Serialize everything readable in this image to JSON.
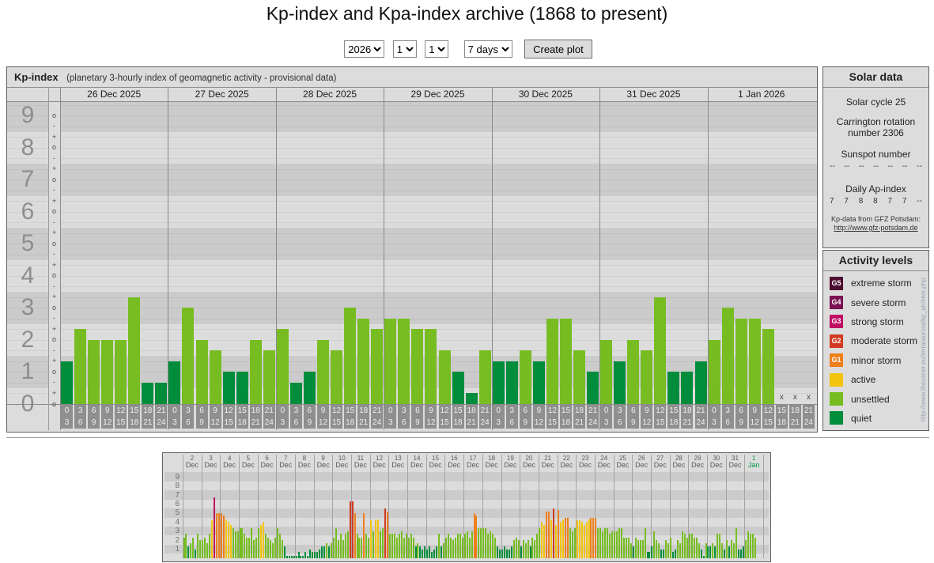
{
  "page": {
    "title": "Kp-index and Kpa-index archive (1868 to present)"
  },
  "controls": {
    "year": "2026",
    "month": "1",
    "day": "1",
    "range": "7 days",
    "submit": "Create plot"
  },
  "kp_panel": {
    "title": "Kp-index",
    "subtitle": "(planetary 3-hourly index of geomagnetic activity - provisional data)",
    "missing_marker": "x"
  },
  "solar_data": {
    "title": "Solar data",
    "cycle": "Solar cycle 25",
    "carrington": "Carrington rotation number 2306",
    "sunspot_label": "Sunspot number",
    "sunspot_values": [
      "--",
      "--",
      "--",
      "--",
      "--",
      "--",
      "--"
    ],
    "ap_label": "Daily Ap-index",
    "ap_values": [
      "7",
      "7",
      "8",
      "8",
      "7",
      "7",
      "--"
    ],
    "source_line1": "Kp-data from GFZ Potsdam:",
    "source_line2": "http://www.gfz-potsdam.de"
  },
  "activity_levels": {
    "title": "Activity levels",
    "items": [
      {
        "code": "G5",
        "label": "extreme storm",
        "color": "#4c0d30"
      },
      {
        "code": "G4",
        "label": "severe storm",
        "color": "#7a1252"
      },
      {
        "code": "G3",
        "label": "strong storm",
        "color": "#c00e63"
      },
      {
        "code": "G2",
        "label": "moderate storm",
        "color": "#d13a21"
      },
      {
        "code": "G1",
        "label": "minor storm",
        "color": "#ee7f1b"
      },
      {
        "code": "",
        "label": "active",
        "color": "#f2c40e"
      },
      {
        "code": "",
        "label": "unsettled",
        "color": "#77bd22"
      },
      {
        "code": "",
        "label": "quiet",
        "color": "#008d3b"
      }
    ]
  },
  "watermark": "http://www.theusner.eu/terra/aurora/kp_archive.php",
  "colors": {
    "quiet": "#008d3b",
    "unsettled": "#77bd22",
    "active": "#f2c40e",
    "minor_storm": "#ee7f1b",
    "moderate_storm": "#d13a21",
    "strong_storm": "#c00e63",
    "severe_storm": "#7a1252",
    "extreme_storm": "#4c0d30",
    "band_light": "#dcdcdc",
    "band_dark": "#cbcbcb",
    "highlight_day": "#009640"
  },
  "chart_data": [
    {
      "type": "bar",
      "id": "kp-main",
      "title": "Kp-index (26 Dec 2025 - 1 Jan 2026)",
      "ylabel": "Kp",
      "ylim": [
        0,
        9.45
      ],
      "yticks": [
        0,
        1,
        2,
        3,
        4,
        5,
        6,
        7,
        8,
        9
      ],
      "grid": true,
      "interval_labels": [
        [
          "0",
          "3"
        ],
        [
          "3",
          "6"
        ],
        [
          "6",
          "9"
        ],
        [
          "9",
          "12"
        ],
        [
          "12",
          "15"
        ],
        [
          "15",
          "18"
        ],
        [
          "18",
          "21"
        ],
        [
          "21",
          "24"
        ]
      ],
      "days": [
        {
          "date": "26 Dec 2025",
          "kp": [
            "1+",
            "2+",
            "2o",
            "2o",
            "2o",
            "3+",
            "1-",
            "1-"
          ]
        },
        {
          "date": "27 Dec 2025",
          "kp": [
            "1+",
            "3o",
            "2o",
            "2-",
            "1o",
            "1o",
            "2o",
            "2-"
          ]
        },
        {
          "date": "28 Dec 2025",
          "kp": [
            "2+",
            "1-",
            "1o",
            "2o",
            "2-",
            "3o",
            "3-",
            "2+"
          ]
        },
        {
          "date": "29 Dec 2025",
          "kp": [
            "3-",
            "3-",
            "2+",
            "2+",
            "2-",
            "1o",
            "0+",
            "2-"
          ]
        },
        {
          "date": "30 Dec 2025",
          "kp": [
            "1+",
            "1+",
            "2-",
            "1+",
            "3-",
            "3-",
            "2-",
            "1o"
          ]
        },
        {
          "date": "31 Dec 2025",
          "kp": [
            "2o",
            "1+",
            "2o",
            "2-",
            "3+",
            "1o",
            "1o",
            "1+"
          ]
        },
        {
          "date": "1 Jan 2026",
          "kp": [
            "2o",
            "3o",
            "3-",
            "3-",
            "2+",
            "x",
            "x",
            "x"
          ]
        }
      ]
    },
    {
      "type": "bar",
      "id": "kp-overview",
      "title": "Kp overview 2 Dec 2025 - 1 Jan 2026",
      "ylim": [
        0,
        9.8
      ],
      "yticks": [
        1,
        2,
        3,
        4,
        5,
        6,
        7,
        8,
        9
      ],
      "days": [
        {
          "d": "2",
          "m": "Dec",
          "v": [
            2.3,
            2.7,
            1.3,
            1.7,
            2.3,
            1.0,
            2.7,
            2.0
          ]
        },
        {
          "d": "3",
          "m": "Dec",
          "v": [
            2.0,
            2.3,
            1.7,
            2.7,
            4.2,
            6.7,
            5.0,
            5.0
          ]
        },
        {
          "d": "4",
          "m": "Dec",
          "v": [
            5.0,
            4.7,
            4.3,
            4.0,
            3.7,
            3.3,
            3.0,
            3.0
          ]
        },
        {
          "d": "5",
          "m": "Dec",
          "v": [
            3.3,
            3.3,
            2.7,
            2.3,
            2.3,
            3.3,
            2.0,
            2.3
          ]
        },
        {
          "d": "6",
          "m": "Dec",
          "v": [
            3.3,
            3.7,
            4.0,
            2.7,
            2.3,
            2.0,
            1.7,
            2.3
          ]
        },
        {
          "d": "7",
          "m": "Dec",
          "v": [
            3.3,
            2.7,
            2.0,
            1.3,
            0.3,
            0.3,
            0.3,
            0.3
          ]
        },
        {
          "d": "8",
          "m": "Dec",
          "v": [
            0.3,
            0.7,
            0.3,
            0.3,
            0.7,
            0.3,
            1.0,
            0.7
          ]
        },
        {
          "d": "9",
          "m": "Dec",
          "v": [
            0.7,
            0.7,
            1.0,
            1.3,
            1.3,
            1.7,
            1.3,
            1.7
          ]
        },
        {
          "d": "10",
          "m": "Dec",
          "v": [
            2.3,
            3.3,
            2.0,
            2.7,
            2.0,
            2.7,
            3.0,
            6.3
          ]
        },
        {
          "d": "11",
          "m": "Dec",
          "v": [
            6.3,
            5.0,
            2.7,
            2.3,
            2.3,
            5.0,
            2.7,
            2.3
          ]
        },
        {
          "d": "12",
          "m": "Dec",
          "v": [
            4.2,
            3.0,
            4.2,
            4.3,
            3.0,
            3.3,
            5.5,
            5.2
          ]
        },
        {
          "d": "13",
          "m": "Dec",
          "v": [
            2.7,
            2.7,
            2.7,
            2.3,
            2.7,
            3.0,
            2.3,
            2.7
          ]
        },
        {
          "d": "14",
          "m": "Dec",
          "v": [
            2.3,
            2.7,
            2.3,
            1.3,
            1.7,
            1.3,
            1.0,
            1.3
          ]
        },
        {
          "d": "15",
          "m": "Dec",
          "v": [
            1.0,
            1.3,
            0.7,
            1.0,
            1.3,
            2.7,
            1.3,
            1.7
          ]
        },
        {
          "d": "16",
          "m": "Dec",
          "v": [
            2.3,
            2.7,
            2.3,
            2.0,
            2.3,
            2.7,
            2.7,
            2.3
          ]
        },
        {
          "d": "17",
          "m": "Dec",
          "v": [
            2.7,
            3.0,
            2.3,
            3.0,
            5.0,
            4.7,
            3.3,
            3.3
          ]
        },
        {
          "d": "18",
          "m": "Dec",
          "v": [
            3.3,
            3.3,
            2.7,
            3.0,
            2.7,
            2.3,
            1.3,
            1.0
          ]
        },
        {
          "d": "19",
          "m": "Dec",
          "v": [
            1.0,
            1.3,
            1.0,
            1.0,
            1.3,
            2.0,
            2.3,
            2.0
          ]
        },
        {
          "d": "20",
          "m": "Dec",
          "v": [
            1.3,
            2.0,
            1.7,
            2.0,
            1.3,
            2.3,
            2.0,
            2.7
          ]
        },
        {
          "d": "21",
          "m": "Dec",
          "v": [
            3.3,
            4.0,
            3.7,
            5.2,
            5.2,
            4.3,
            5.5,
            3.7
          ]
        },
        {
          "d": "22",
          "m": "Dec",
          "v": [
            5.3,
            4.0,
            4.3,
            4.5,
            4.5,
            3.3,
            3.0,
            3.3
          ]
        },
        {
          "d": "23",
          "m": "Dec",
          "v": [
            4.2,
            4.2,
            4.0,
            3.7,
            4.0,
            4.3,
            4.5,
            4.5
          ]
        },
        {
          "d": "24",
          "m": "Dec",
          "v": [
            4.5,
            3.3,
            3.3,
            3.0,
            3.3,
            3.3,
            2.7,
            3.0
          ]
        },
        {
          "d": "25",
          "m": "Dec",
          "v": [
            3.0,
            3.0,
            3.3,
            3.3,
            2.3,
            2.3,
            2.3,
            1.7
          ]
        },
        {
          "d": "26",
          "m": "Dec",
          "v": [
            1.3,
            2.3,
            2.0,
            2.0,
            2.0,
            3.3,
            0.7,
            0.7
          ]
        },
        {
          "d": "27",
          "m": "Dec",
          "v": [
            1.3,
            3.0,
            2.0,
            1.7,
            1.0,
            1.0,
            2.0,
            1.7
          ]
        },
        {
          "d": "28",
          "m": "Dec",
          "v": [
            2.3,
            0.7,
            1.0,
            2.0,
            1.7,
            3.0,
            2.7,
            2.3
          ]
        },
        {
          "d": "29",
          "m": "Dec",
          "v": [
            2.7,
            2.7,
            2.3,
            2.3,
            1.7,
            1.0,
            0.3,
            1.7
          ]
        },
        {
          "d": "30",
          "m": "Dec",
          "v": [
            1.3,
            1.3,
            1.7,
            1.3,
            2.7,
            2.7,
            1.7,
            1.0
          ]
        },
        {
          "d": "31",
          "m": "Dec",
          "v": [
            2.0,
            1.3,
            2.0,
            1.7,
            3.3,
            1.0,
            1.0,
            1.3
          ]
        },
        {
          "d": "1",
          "m": "Jan",
          "v": [
            2.0,
            3.0,
            2.7,
            2.7,
            2.3,
            null,
            null,
            null
          ],
          "highlight": true
        }
      ]
    }
  ]
}
